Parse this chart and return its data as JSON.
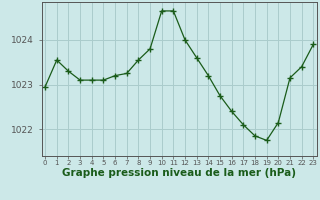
{
  "x": [
    0,
    1,
    2,
    3,
    4,
    5,
    6,
    7,
    8,
    9,
    10,
    11,
    12,
    13,
    14,
    15,
    16,
    17,
    18,
    19,
    20,
    21,
    22,
    23
  ],
  "y": [
    1022.95,
    1023.55,
    1023.3,
    1023.1,
    1023.1,
    1023.1,
    1023.2,
    1023.25,
    1023.55,
    1023.8,
    1024.65,
    1024.65,
    1024.0,
    1023.6,
    1023.2,
    1022.75,
    1022.4,
    1022.1,
    1021.85,
    1021.75,
    1022.15,
    1023.15,
    1023.4,
    1023.9
  ],
  "line_color": "#1a5c1a",
  "marker": "+",
  "marker_size": 4,
  "marker_color": "#1a5c1a",
  "bg_color": "#cce8e8",
  "grid_color": "#aacccc",
  "xlabel": "Graphe pression niveau de la mer (hPa)",
  "xlabel_fontsize": 7.5,
  "xlabel_color": "#1a5c1a",
  "ytick_labels": [
    "1022",
    "1023",
    "1024"
  ],
  "yticks": [
    1022,
    1023,
    1024
  ],
  "xtick_labels": [
    "0",
    "1",
    "2",
    "3",
    "4",
    "5",
    "6",
    "7",
    "8",
    "9",
    "10",
    "11",
    "12",
    "13",
    "14",
    "15",
    "16",
    "17",
    "18",
    "19",
    "20",
    "21",
    "22",
    "23"
  ],
  "ylim": [
    1021.4,
    1024.85
  ],
  "xlim": [
    -0.3,
    23.3
  ]
}
